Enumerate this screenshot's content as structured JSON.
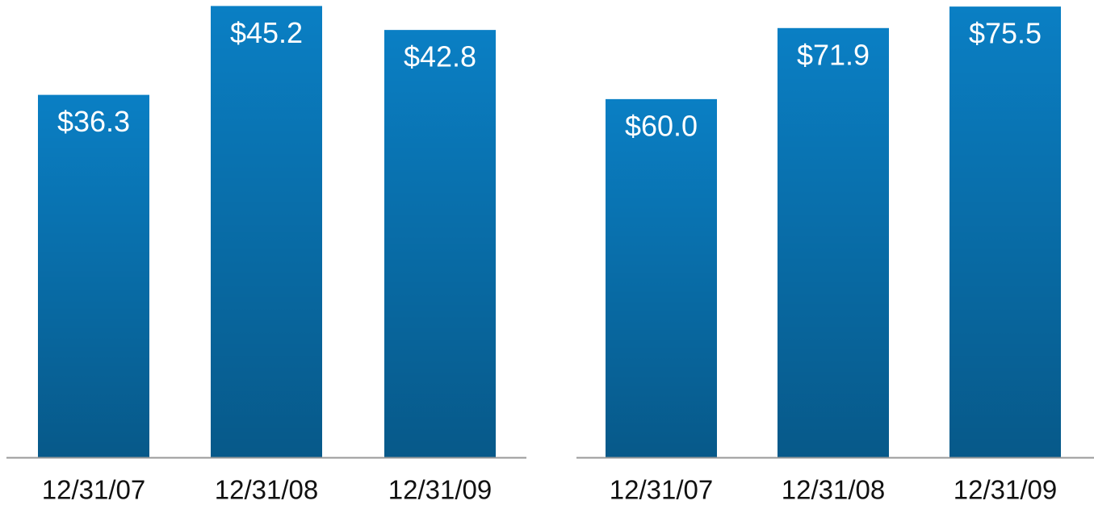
{
  "chart_data": [
    {
      "type": "bar",
      "categories": [
        "12/31/07",
        "12/31/08",
        "12/31/09"
      ],
      "values": [
        36.3,
        45.2,
        42.8
      ],
      "value_labels": [
        "$36.3",
        "$45.2",
        "$42.8"
      ],
      "color": "#0a7fc4",
      "ylim": [
        0,
        45.8
      ]
    },
    {
      "type": "bar",
      "categories": [
        "12/31/07",
        "12/31/08",
        "12/31/09"
      ],
      "values": [
        60.0,
        71.9,
        75.5
      ],
      "value_labels": [
        "$60.0",
        "$71.9",
        "$75.5"
      ],
      "color": "#0a7fc4",
      "ylim": [
        0,
        76.6
      ]
    }
  ]
}
